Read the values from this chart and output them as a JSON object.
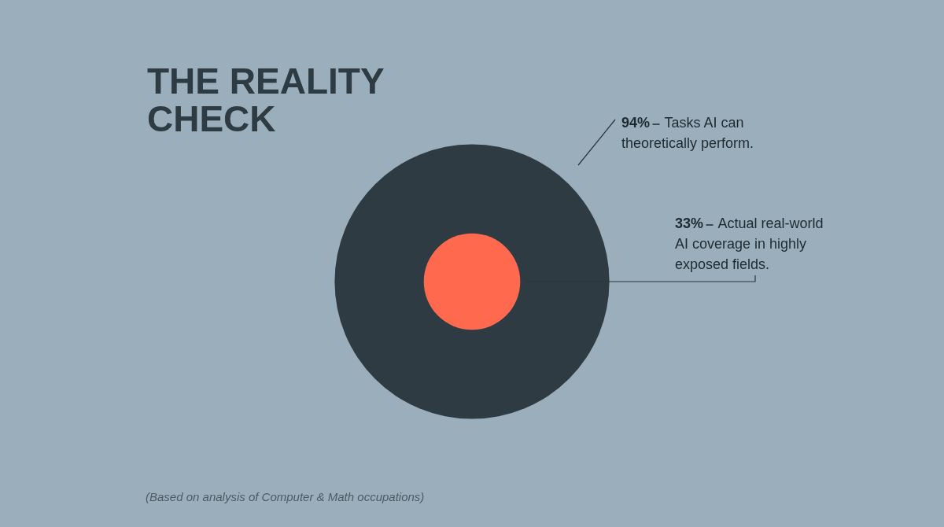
{
  "chart_data": {
    "type": "other",
    "title": "THE REALITY CHECK",
    "categories": [
      "Tasks AI can theoretically perform.",
      "Actual real-world AI coverage in highly exposed fields."
    ],
    "values": [
      94,
      33
    ],
    "value_labels": [
      "94%",
      "33%"
    ],
    "colors": [
      "#2f3b43",
      "#ff6a4f"
    ],
    "annotations": [
      "(Based on analysis of Computer & Math occupations)"
    ]
  }
}
